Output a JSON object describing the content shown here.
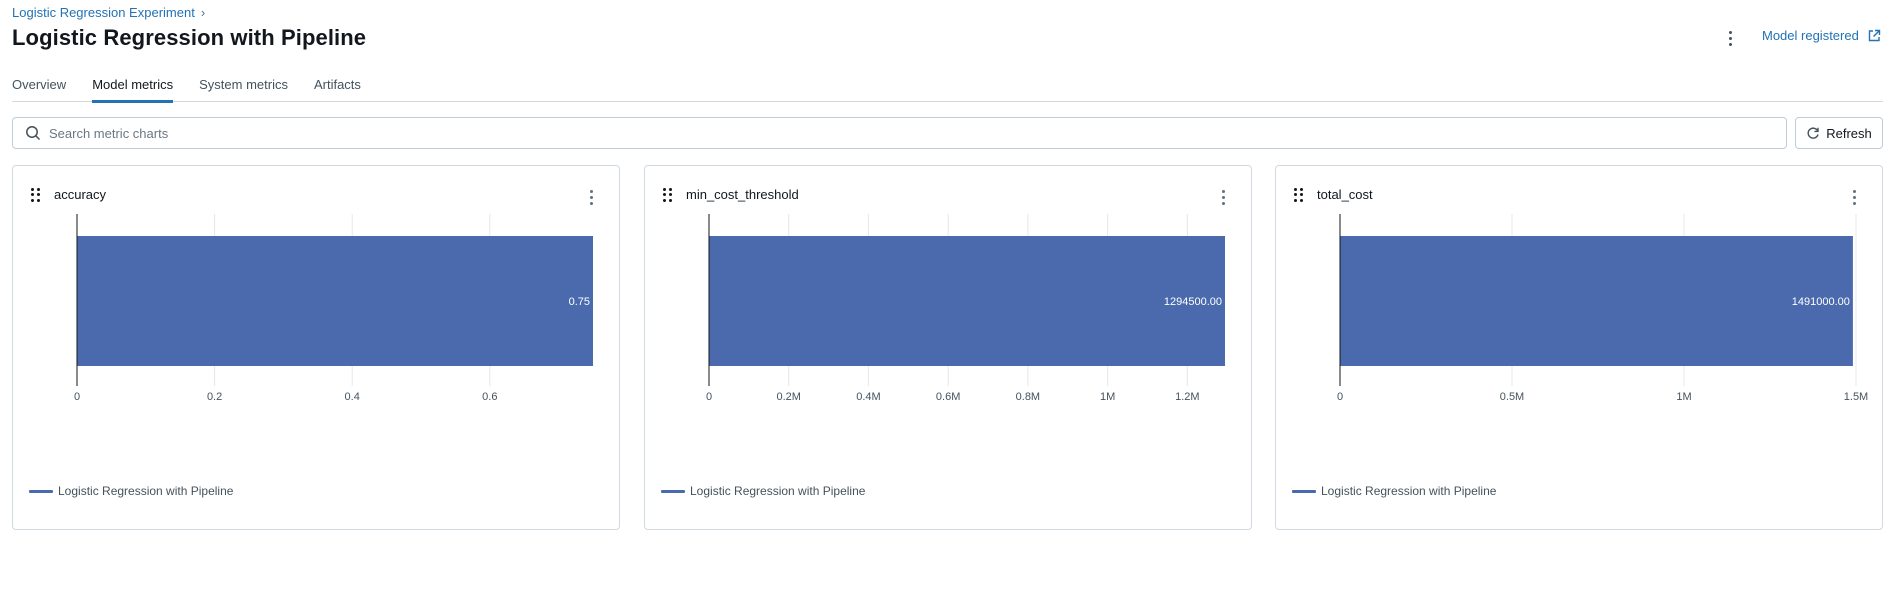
{
  "breadcrumb": {
    "parent": "Logistic Regression Experiment",
    "separator": "›"
  },
  "page": {
    "title": "Logistic Regression with Pipeline"
  },
  "header": {
    "model_registered": "Model registered"
  },
  "tabs": [
    {
      "label": "Overview",
      "active": false
    },
    {
      "label": "Model metrics",
      "active": true
    },
    {
      "label": "System metrics",
      "active": false
    },
    {
      "label": "Artifacts",
      "active": false
    }
  ],
  "search": {
    "placeholder": "Search metric charts",
    "value": ""
  },
  "toolbar": {
    "refresh_label": "Refresh"
  },
  "colors": {
    "bar": "#4a6aad",
    "accent": "#2272b4",
    "grid": "#e4e8ec"
  },
  "cards": [
    {
      "title": "accuracy",
      "legend": "Logistic Regression with Pipeline"
    },
    {
      "title": "min_cost_threshold",
      "legend": "Logistic Regression with Pipeline"
    },
    {
      "title": "total_cost",
      "legend": "Logistic Regression with Pipeline"
    }
  ],
  "chart_data": [
    {
      "type": "bar",
      "orientation": "horizontal",
      "title": "accuracy",
      "series": [
        {
          "name": "Logistic Regression with Pipeline",
          "values": [
            0.75
          ]
        }
      ],
      "data_labels": [
        "0.75"
      ],
      "xlim": [
        0,
        0.75
      ],
      "xticks": [
        0,
        0.2,
        0.4,
        0.6
      ],
      "xtick_labels": [
        "0",
        "0.2",
        "0.4",
        "0.6"
      ],
      "grid": true,
      "legend": "bottom-left"
    },
    {
      "type": "bar",
      "orientation": "horizontal",
      "title": "min_cost_threshold",
      "series": [
        {
          "name": "Logistic Regression with Pipeline",
          "values": [
            1294500
          ]
        }
      ],
      "data_labels": [
        "1294500.00"
      ],
      "xlim": [
        0,
        1294500
      ],
      "xticks": [
        0,
        200000,
        400000,
        600000,
        800000,
        1000000,
        1200000
      ],
      "xtick_labels": [
        "0",
        "0.2M",
        "0.4M",
        "0.6M",
        "0.8M",
        "1M",
        "1.2M"
      ],
      "grid": true,
      "legend": "bottom-left"
    },
    {
      "type": "bar",
      "orientation": "horizontal",
      "title": "total_cost",
      "series": [
        {
          "name": "Logistic Regression with Pipeline",
          "values": [
            1491000
          ]
        }
      ],
      "data_labels": [
        "1491000.00"
      ],
      "xlim": [
        0,
        1500000
      ],
      "xticks": [
        0,
        500000,
        1000000,
        1500000
      ],
      "xtick_labels": [
        "0",
        "0.5M",
        "1M",
        "1.5M"
      ],
      "grid": true,
      "legend": "bottom-left"
    }
  ]
}
